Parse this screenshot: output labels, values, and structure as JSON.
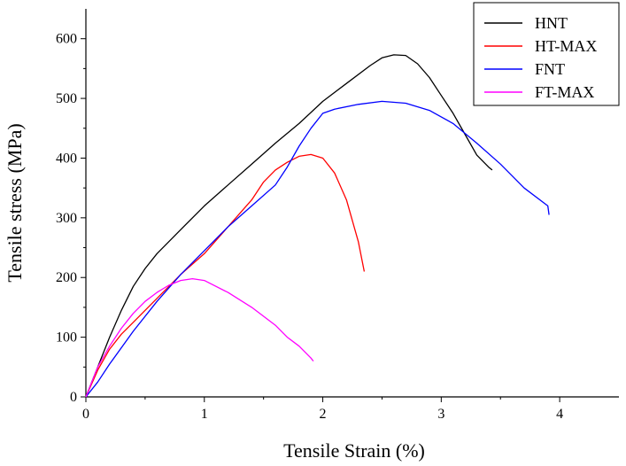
{
  "chart_data": {
    "type": "line",
    "title": "",
    "xlabel": "Tensile Strain (%)",
    "ylabel": "Tensile stress (MPa)",
    "xlim": [
      0,
      4.5
    ],
    "ylim": [
      0,
      650
    ],
    "xticks": [
      0,
      1,
      2,
      3,
      4
    ],
    "yticks": [
      0,
      100,
      200,
      300,
      400,
      500,
      600
    ],
    "grid": false,
    "legend_position": "top-right",
    "series": [
      {
        "name": "HNT",
        "color": "#000000",
        "x": [
          0,
          0.1,
          0.2,
          0.3,
          0.4,
          0.5,
          0.6,
          0.8,
          1.0,
          1.2,
          1.4,
          1.6,
          1.8,
          2.0,
          2.2,
          2.4,
          2.5,
          2.6,
          2.7,
          2.8,
          2.9,
          3.0,
          3.1,
          3.2,
          3.3,
          3.4,
          3.43
        ],
        "y": [
          0,
          50,
          100,
          145,
          185,
          215,
          240,
          280,
          320,
          355,
          390,
          425,
          458,
          495,
          525,
          555,
          568,
          573,
          572,
          558,
          535,
          505,
          475,
          440,
          405,
          385,
          380
        ]
      },
      {
        "name": "HT-MAX",
        "color": "#ff0000",
        "x": [
          0,
          0.1,
          0.2,
          0.3,
          0.4,
          0.6,
          0.8,
          1.0,
          1.2,
          1.4,
          1.5,
          1.6,
          1.7,
          1.8,
          1.9,
          2.0,
          2.1,
          2.2,
          2.3,
          2.35
        ],
        "y": [
          0,
          45,
          80,
          105,
          125,
          165,
          205,
          240,
          285,
          330,
          360,
          380,
          393,
          403,
          406,
          400,
          375,
          330,
          260,
          210
        ]
      },
      {
        "name": "FNT",
        "color": "#0000ff",
        "x": [
          0,
          0.1,
          0.2,
          0.4,
          0.6,
          0.8,
          1.0,
          1.2,
          1.4,
          1.6,
          1.7,
          1.8,
          1.9,
          2.0,
          2.1,
          2.3,
          2.5,
          2.7,
          2.9,
          3.1,
          3.3,
          3.5,
          3.7,
          3.9,
          3.91
        ],
        "y": [
          0,
          25,
          55,
          110,
          160,
          205,
          245,
          285,
          320,
          355,
          385,
          420,
          450,
          475,
          482,
          490,
          495,
          492,
          480,
          458,
          425,
          390,
          350,
          320,
          305
        ]
      },
      {
        "name": "FT-MAX",
        "color": "#ff00ff",
        "x": [
          0,
          0.1,
          0.2,
          0.3,
          0.4,
          0.5,
          0.6,
          0.7,
          0.8,
          0.9,
          1.0,
          1.2,
          1.4,
          1.6,
          1.7,
          1.8,
          1.9,
          1.92
        ],
        "y": [
          0,
          50,
          85,
          115,
          140,
          160,
          175,
          187,
          195,
          198,
          195,
          175,
          150,
          120,
          100,
          85,
          65,
          60
        ]
      }
    ]
  }
}
